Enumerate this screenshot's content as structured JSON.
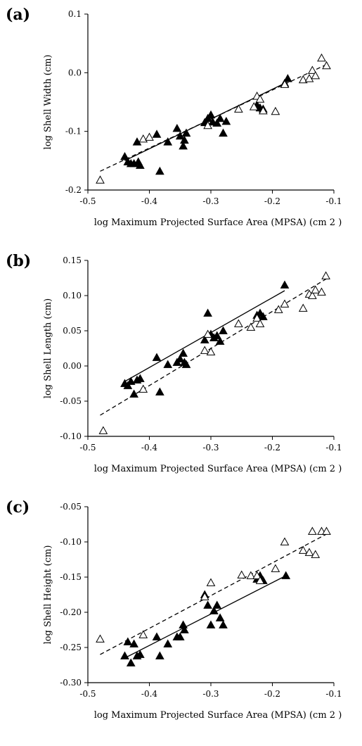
{
  "chart_data": [
    {
      "panel": "(a)",
      "type": "scatter",
      "xlabel": "log Maximum Projected Surface Area (MPSA) (cm 2 )",
      "ylabel": "log Shell Width (cm)",
      "xlim": [
        -0.5,
        -0.1
      ],
      "ylim": [
        -0.2,
        0.1
      ],
      "xticks": [
        -0.5,
        -0.4,
        -0.3,
        -0.2,
        -0.1
      ],
      "xtick_labels": [
        "-0.5",
        "-0.4",
        "-0.3",
        "-0.2",
        "-0.1"
      ],
      "yticks": [
        -0.2,
        -0.1,
        0.0,
        0.1
      ],
      "ytick_labels": [
        "-0.2",
        "-0.1",
        "0.0",
        "0.1"
      ],
      "series": [
        {
          "marker": "filled-triangle",
          "points": [
            [
              -0.44,
              -0.143
            ],
            [
              -0.435,
              -0.152
            ],
            [
              -0.43,
              -0.155
            ],
            [
              -0.425,
              -0.155
            ],
            [
              -0.42,
              -0.118
            ],
            [
              -0.418,
              -0.152
            ],
            [
              -0.415,
              -0.158
            ],
            [
              -0.388,
              -0.105
            ],
            [
              -0.383,
              -0.168
            ],
            [
              -0.37,
              -0.118
            ],
            [
              -0.355,
              -0.095
            ],
            [
              -0.35,
              -0.108
            ],
            [
              -0.345,
              -0.125
            ],
            [
              -0.343,
              -0.115
            ],
            [
              -0.34,
              -0.103
            ],
            [
              -0.31,
              -0.085
            ],
            [
              -0.305,
              -0.078
            ],
            [
              -0.3,
              -0.072
            ],
            [
              -0.297,
              -0.084
            ],
            [
              -0.29,
              -0.086
            ],
            [
              -0.285,
              -0.078
            ],
            [
              -0.28,
              -0.103
            ],
            [
              -0.275,
              -0.083
            ],
            [
              -0.225,
              -0.055
            ],
            [
              -0.22,
              -0.06
            ],
            [
              -0.215,
              -0.062
            ],
            [
              -0.18,
              -0.018
            ],
            [
              -0.175,
              -0.01
            ]
          ],
          "fit": [
            [
              -0.44,
              -0.15
            ],
            [
              -0.18,
              -0.018
            ]
          ],
          "fit_style": "solid"
        },
        {
          "marker": "open-triangle",
          "points": [
            [
              -0.48,
              -0.183
            ],
            [
              -0.41,
              -0.113
            ],
            [
              -0.4,
              -0.11
            ],
            [
              -0.305,
              -0.09
            ],
            [
              -0.255,
              -0.062
            ],
            [
              -0.23,
              -0.058
            ],
            [
              -0.225,
              -0.04
            ],
            [
              -0.22,
              -0.045
            ],
            [
              -0.215,
              -0.065
            ],
            [
              -0.195,
              -0.066
            ],
            [
              -0.18,
              -0.02
            ],
            [
              -0.15,
              -0.012
            ],
            [
              -0.14,
              -0.01
            ],
            [
              -0.135,
              0.004
            ],
            [
              -0.13,
              -0.005
            ],
            [
              -0.12,
              0.025
            ],
            [
              -0.112,
              0.012
            ]
          ],
          "fit": [
            [
              -0.48,
              -0.168
            ],
            [
              -0.11,
              0.015
            ]
          ],
          "fit_style": "dashed"
        }
      ]
    },
    {
      "panel": "(b)",
      "type": "scatter",
      "xlabel": "log Maximum Projected Surface Area (MPSA) (cm 2 )",
      "ylabel": "log Shell Length (cm)",
      "xlim": [
        -0.5,
        -0.1
      ],
      "ylim": [
        -0.1,
        0.15
      ],
      "xticks": [
        -0.5,
        -0.4,
        -0.3,
        -0.2,
        -0.1
      ],
      "xtick_labels": [
        "-0.5",
        "-0.4",
        "-0.3",
        "-0.2",
        "-0.1"
      ],
      "yticks": [
        -0.1,
        -0.05,
        0.0,
        0.05,
        0.1,
        0.15
      ],
      "ytick_labels": [
        "-0.10",
        "-0.05",
        "0.00",
        "0.05",
        "0.10",
        "0.15"
      ],
      "series": [
        {
          "marker": "filled-triangle",
          "points": [
            [
              -0.44,
              -0.025
            ],
            [
              -0.435,
              -0.028
            ],
            [
              -0.43,
              -0.022
            ],
            [
              -0.425,
              -0.04
            ],
            [
              -0.42,
              -0.02
            ],
            [
              -0.415,
              -0.018
            ],
            [
              -0.388,
              0.012
            ],
            [
              -0.383,
              -0.037
            ],
            [
              -0.37,
              0.002
            ],
            [
              -0.355,
              0.005
            ],
            [
              -0.35,
              0.01
            ],
            [
              -0.345,
              0.018
            ],
            [
              -0.343,
              0.005
            ],
            [
              -0.34,
              0.002
            ],
            [
              -0.31,
              0.037
            ],
            [
              -0.305,
              0.075
            ],
            [
              -0.3,
              0.045
            ],
            [
              -0.295,
              0.04
            ],
            [
              -0.29,
              0.043
            ],
            [
              -0.285,
              0.035
            ],
            [
              -0.28,
              0.05
            ],
            [
              -0.225,
              0.072
            ],
            [
              -0.22,
              0.075
            ],
            [
              -0.215,
              0.07
            ],
            [
              -0.18,
              0.115
            ]
          ],
          "fit": [
            [
              -0.44,
              -0.022
            ],
            [
              -0.18,
              0.107
            ]
          ],
          "fit_style": "solid"
        },
        {
          "marker": "open-triangle",
          "points": [
            [
              -0.475,
              -0.092
            ],
            [
              -0.41,
              -0.033
            ],
            [
              -0.31,
              0.022
            ],
            [
              -0.305,
              0.045
            ],
            [
              -0.3,
              0.02
            ],
            [
              -0.255,
              0.06
            ],
            [
              -0.235,
              0.055
            ],
            [
              -0.225,
              0.068
            ],
            [
              -0.22,
              0.06
            ],
            [
              -0.19,
              0.08
            ],
            [
              -0.18,
              0.088
            ],
            [
              -0.15,
              0.082
            ],
            [
              -0.14,
              0.102
            ],
            [
              -0.135,
              0.1
            ],
            [
              -0.13,
              0.108
            ],
            [
              -0.12,
              0.105
            ],
            [
              -0.113,
              0.128
            ]
          ],
          "fit": [
            [
              -0.48,
              -0.07
            ],
            [
              -0.11,
              0.125
            ]
          ],
          "fit_style": "dashed"
        }
      ]
    },
    {
      "panel": "(c)",
      "type": "scatter",
      "xlabel": "log Maximum Projected Surface Area (MPSA) (cm 2 )",
      "ylabel": "log Shell Height (cm)",
      "xlim": [
        -0.5,
        -0.1
      ],
      "ylim": [
        -0.3,
        -0.05
      ],
      "xticks": [
        -0.5,
        -0.4,
        -0.3,
        -0.2,
        -0.1
      ],
      "xtick_labels": [
        "-0.5",
        "-0.4",
        "-0.3",
        "-0.2",
        "-0.1"
      ],
      "yticks": [
        -0.3,
        -0.25,
        -0.2,
        -0.15,
        -0.1,
        -0.05
      ],
      "ytick_labels": [
        "-0.30",
        "-0.25",
        "-0.20",
        "-0.15",
        "-0.10",
        "-0.05"
      ],
      "series": [
        {
          "marker": "filled-triangle",
          "points": [
            [
              -0.44,
              -0.262
            ],
            [
              -0.435,
              -0.242
            ],
            [
              -0.43,
              -0.272
            ],
            [
              -0.425,
              -0.245
            ],
            [
              -0.42,
              -0.262
            ],
            [
              -0.415,
              -0.26
            ],
            [
              -0.388,
              -0.235
            ],
            [
              -0.383,
              -0.262
            ],
            [
              -0.37,
              -0.245
            ],
            [
              -0.355,
              -0.235
            ],
            [
              -0.35,
              -0.235
            ],
            [
              -0.345,
              -0.218
            ],
            [
              -0.343,
              -0.225
            ],
            [
              -0.31,
              -0.175
            ],
            [
              -0.305,
              -0.19
            ],
            [
              -0.3,
              -0.218
            ],
            [
              -0.295,
              -0.198
            ],
            [
              -0.29,
              -0.19
            ],
            [
              -0.285,
              -0.208
            ],
            [
              -0.28,
              -0.218
            ],
            [
              -0.225,
              -0.153
            ],
            [
              -0.22,
              -0.148
            ],
            [
              -0.215,
              -0.155
            ],
            [
              -0.178,
              -0.148
            ]
          ],
          "fit": [
            [
              -0.44,
              -0.265
            ],
            [
              -0.178,
              -0.148
            ]
          ],
          "fit_style": "solid"
        },
        {
          "marker": "open-triangle",
          "points": [
            [
              -0.48,
              -0.238
            ],
            [
              -0.41,
              -0.232
            ],
            [
              -0.31,
              -0.178
            ],
            [
              -0.3,
              -0.158
            ],
            [
              -0.25,
              -0.147
            ],
            [
              -0.235,
              -0.148
            ],
            [
              -0.225,
              -0.148
            ],
            [
              -0.22,
              -0.155
            ],
            [
              -0.195,
              -0.138
            ],
            [
              -0.18,
              -0.1
            ],
            [
              -0.15,
              -0.112
            ],
            [
              -0.14,
              -0.115
            ],
            [
              -0.135,
              -0.085
            ],
            [
              -0.13,
              -0.118
            ],
            [
              -0.12,
              -0.085
            ],
            [
              -0.112,
              -0.085
            ]
          ],
          "fit": [
            [
              -0.48,
              -0.26
            ],
            [
              -0.11,
              -0.088
            ]
          ],
          "fit_style": "dashed"
        }
      ]
    }
  ]
}
